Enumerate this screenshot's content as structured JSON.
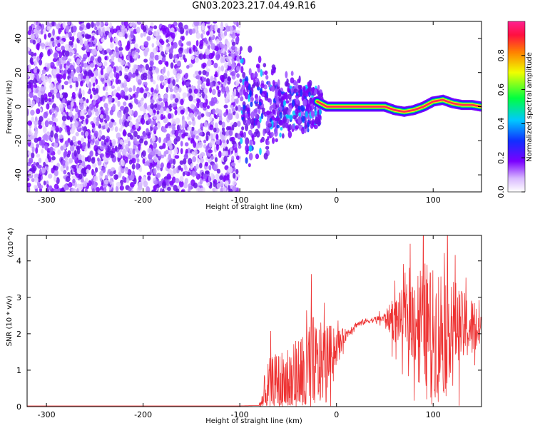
{
  "title": "GN03.2023.217.04.49.R16",
  "colors": {
    "snr_line": "#ee3333",
    "axis": "#000000",
    "spectrogram_purple": "#7a00ff",
    "ridge_center": "#ff2a55"
  },
  "chart_data": [
    {
      "type": "heatmap",
      "xlabel": "Height of straight line (km)",
      "ylabel": "Frequency (Hz)",
      "xlim": [
        -320,
        150
      ],
      "ylim": [
        -50,
        50
      ],
      "xticks": [
        -300,
        -200,
        -100,
        0,
        100
      ],
      "yticks": [
        -40,
        -20,
        0,
        20,
        40
      ],
      "colorbar": {
        "label": "Normalized spectral amplitude",
        "range": [
          0,
          1
        ],
        "ticks": [
          "0.0",
          "0.2",
          "0.4",
          "0.6",
          "0.8"
        ],
        "colormap": "rainbow (white-purple-blue-cyan-green-yellow-red-magenta)"
      },
      "regions": [
        {
          "x_range": [
            -320,
            -100
          ],
          "description": "broadband noise",
          "amplitude": 0.15
        },
        {
          "x_range": [
            -100,
            -15
          ],
          "description": "intermittent signal",
          "amplitude": 0.4
        },
        {
          "x_range": [
            -15,
            150
          ],
          "description": "coherent ridge near 0 Hz",
          "amplitude": 1.0
        }
      ],
      "ridge": {
        "x": [
          -20,
          -10,
          0,
          20,
          40,
          50,
          60,
          70,
          80,
          90,
          100,
          110,
          120,
          130,
          140,
          150
        ],
        "freq": [
          3,
          0,
          0,
          0,
          0,
          0,
          -2,
          -3,
          -2,
          0,
          3,
          4,
          2,
          1,
          1,
          0
        ]
      }
    },
    {
      "type": "line",
      "xlabel": "Height of straight line (km)",
      "ylabel": "SNR (10 * v/v)",
      "y_multiplier": "(x10^4)",
      "xlim": [
        -320,
        150
      ],
      "ylim": [
        0,
        4.7
      ],
      "xticks": [
        -300,
        -200,
        -100,
        0,
        100
      ],
      "yticks": [
        0,
        1,
        2,
        3,
        4
      ],
      "series": [
        {
          "x": [
            -320,
            -150,
            -100,
            -80,
            -75,
            -70,
            -60,
            -50,
            -40,
            -30,
            -20,
            -10,
            0,
            10,
            20,
            30,
            40,
            50,
            60,
            70,
            80,
            90,
            100,
            110,
            120,
            130,
            140,
            150
          ],
          "y": [
            0.02,
            0.02,
            0.02,
            0.03,
            0.25,
            0.6,
            0.65,
            0.7,
            0.85,
            1.0,
            1.15,
            1.45,
            1.7,
            2.0,
            2.25,
            2.35,
            2.4,
            2.45,
            2.45,
            2.55,
            2.6,
            2.5,
            2.2,
            2.3,
            2.45,
            2.3,
            2.25,
            2.3
          ],
          "noise_amplitude": [
            0,
            0,
            0,
            0,
            0.8,
            1.0,
            1.2,
            1.4,
            1.4,
            2.5,
            1.6,
            1.2,
            0.6,
            0.2,
            0.1,
            0.1,
            0.1,
            0.2,
            0.8,
            1.0,
            1.6,
            2.2,
            2.2,
            2.4,
            1.6,
            1.2,
            1.1,
            0.9
          ]
        }
      ]
    }
  ]
}
